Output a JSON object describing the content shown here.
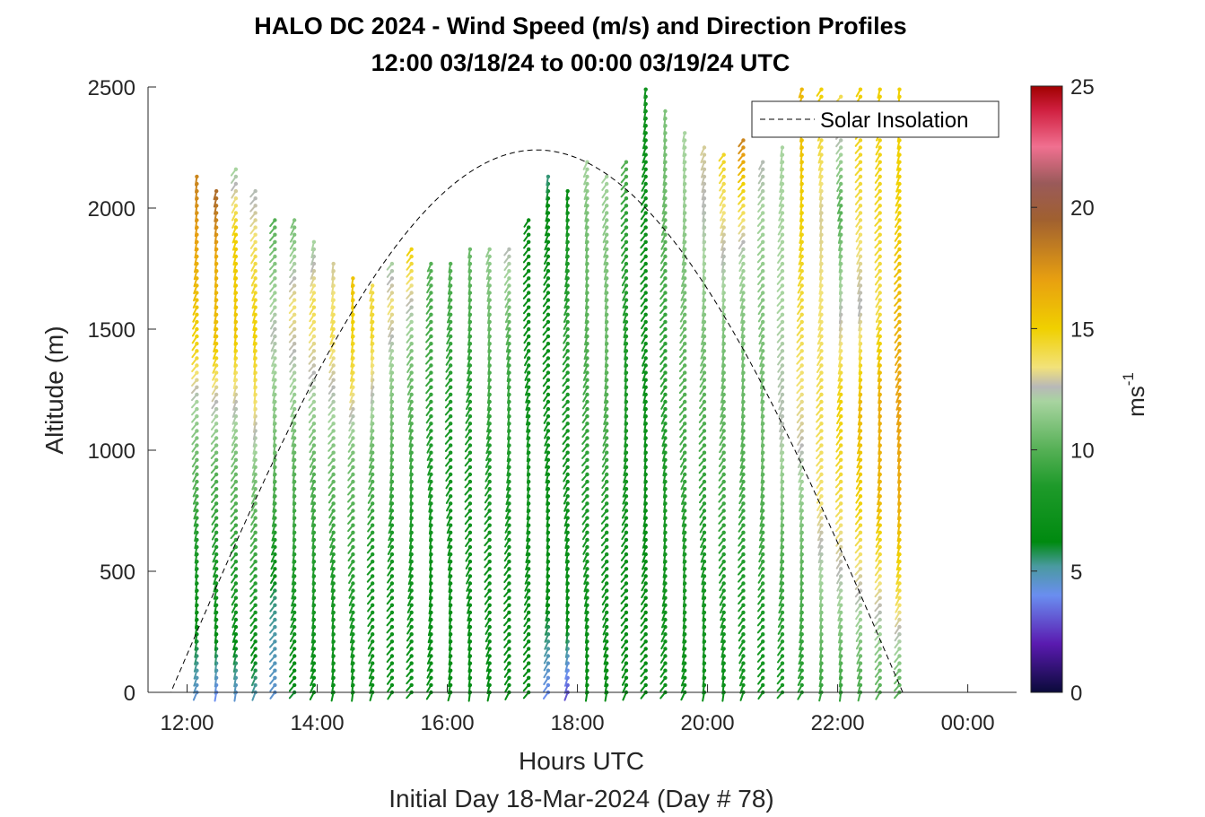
{
  "chart_data": {
    "type": "scatter",
    "title": "HALO DC 2024 - Wind Speed (m/s) and Direction Profiles",
    "subtitle": "12:00 03/18/24 to 00:00 03/19/24  UTC",
    "xlabel": "Hours UTC",
    "xlabel2": "Initial Day 18-Mar-2024 (Day # 78)",
    "ylabel": "Altitude (m)",
    "x_ticks": [
      {
        "value": 12,
        "label": "12:00"
      },
      {
        "value": 14,
        "label": "14:00"
      },
      {
        "value": 16,
        "label": "16:00"
      },
      {
        "value": 18,
        "label": "18:00"
      },
      {
        "value": 20,
        "label": "20:00"
      },
      {
        "value": 22,
        "label": "22:00"
      },
      {
        "value": 24,
        "label": "00:00"
      }
    ],
    "y_ticks": [
      {
        "value": 0,
        "label": "0"
      },
      {
        "value": 500,
        "label": "500"
      },
      {
        "value": 1000,
        "label": "1000"
      },
      {
        "value": 1500,
        "label": "1500"
      },
      {
        "value": 2000,
        "label": "2000"
      },
      {
        "value": 2500,
        "label": "2500"
      }
    ],
    "xlim": [
      11.4,
      24.75
    ],
    "ylim": [
      0,
      2500
    ],
    "grid": false,
    "legend": {
      "placement": "top-right",
      "entries": [
        {
          "label": "Solar Insolation",
          "style": "dashed-black"
        }
      ]
    },
    "colorbar": {
      "label": "ms",
      "label_sup": "-1",
      "range": [
        0,
        25
      ],
      "ticks": [
        {
          "value": 0,
          "label": "0"
        },
        {
          "value": 5,
          "label": "5"
        },
        {
          "value": 10,
          "label": "10"
        },
        {
          "value": 15,
          "label": "15"
        },
        {
          "value": 20,
          "label": "20"
        },
        {
          "value": 25,
          "label": "25"
        }
      ],
      "stops": [
        {
          "v": 0,
          "c": "#0a0a3a"
        },
        {
          "v": 2,
          "c": "#5a1ab0"
        },
        {
          "v": 4,
          "c": "#6a8ef0"
        },
        {
          "v": 5.2,
          "c": "#4a9aa0"
        },
        {
          "v": 6.2,
          "c": "#008a10"
        },
        {
          "v": 8.5,
          "c": "#1e9a2a"
        },
        {
          "v": 10,
          "c": "#55b055"
        },
        {
          "v": 12,
          "c": "#a8d4a0"
        },
        {
          "v": 12.6,
          "c": "#b8b8b8"
        },
        {
          "v": 13.4,
          "c": "#f2e27a"
        },
        {
          "v": 15,
          "c": "#f0d000"
        },
        {
          "v": 17,
          "c": "#e8a010"
        },
        {
          "v": 19.5,
          "c": "#a06030"
        },
        {
          "v": 21,
          "c": "#9a5a5a"
        },
        {
          "v": 22.5,
          "c": "#f07090"
        },
        {
          "v": 24,
          "c": "#d02040"
        },
        {
          "v": 25,
          "c": "#a00000"
        }
      ]
    },
    "solar_insolation": {
      "sunrise_hour": 11.75,
      "sunset_hour": 23.0,
      "peak_hour": 17.4,
      "peak_altitude_equiv": 2240
    },
    "profiles": [
      {
        "t": 12.15,
        "top": 2130,
        "s": [
          [
            0,
            4.5
          ],
          [
            300,
            6.5
          ],
          [
            800,
            9.5
          ],
          [
            1200,
            12
          ],
          [
            1400,
            14.5
          ],
          [
            1700,
            16
          ],
          [
            2100,
            18
          ]
        ]
      },
      {
        "t": 12.45,
        "top": 2090,
        "s": [
          [
            0,
            4
          ],
          [
            300,
            7
          ],
          [
            900,
            10
          ],
          [
            1250,
            13
          ],
          [
            1450,
            15.5
          ],
          [
            1800,
            16.5
          ],
          [
            2050,
            19
          ]
        ]
      },
      {
        "t": 12.75,
        "top": 2180,
        "s": [
          [
            0,
            4.5
          ],
          [
            400,
            8
          ],
          [
            1000,
            11
          ],
          [
            1300,
            13.5
          ],
          [
            1500,
            15.5
          ],
          [
            1900,
            15
          ],
          [
            2150,
            12
          ]
        ]
      },
      {
        "t": 13.05,
        "top": 2090,
        "s": [
          [
            0,
            5
          ],
          [
            400,
            8.5
          ],
          [
            900,
            11
          ],
          [
            1200,
            13.5
          ],
          [
            1500,
            15
          ],
          [
            1800,
            14
          ],
          [
            2050,
            12.5
          ]
        ]
      },
      {
        "t": 13.35,
        "top": 1960,
        "s": [
          [
            0,
            4.5
          ],
          [
            400,
            5.5
          ],
          [
            700,
            9
          ],
          [
            1100,
            11
          ],
          [
            1500,
            12.5
          ],
          [
            1800,
            11
          ],
          [
            1950,
            10
          ]
        ]
      },
      {
        "t": 13.65,
        "top": 1950,
        "s": [
          [
            0,
            6
          ],
          [
            400,
            8
          ],
          [
            900,
            10
          ],
          [
            1300,
            12
          ],
          [
            1600,
            13.5
          ],
          [
            1900,
            11
          ]
        ]
      },
      {
        "t": 13.95,
        "top": 1870,
        "s": [
          [
            0,
            6.5
          ],
          [
            400,
            8
          ],
          [
            900,
            10
          ],
          [
            1300,
            12.5
          ],
          [
            1600,
            14
          ],
          [
            1850,
            12
          ]
        ]
      },
      {
        "t": 14.25,
        "top": 1780,
        "s": [
          [
            0,
            7
          ],
          [
            400,
            8
          ],
          [
            900,
            10.5
          ],
          [
            1250,
            12.5
          ],
          [
            1500,
            14
          ],
          [
            1750,
            13
          ]
        ]
      },
      {
        "t": 14.55,
        "top": 1720,
        "s": [
          [
            0,
            7
          ],
          [
            400,
            8.5
          ],
          [
            1000,
            11
          ],
          [
            1300,
            14
          ],
          [
            1550,
            15
          ],
          [
            1700,
            15.5
          ]
        ]
      },
      {
        "t": 14.85,
        "top": 1690,
        "s": [
          [
            0,
            7
          ],
          [
            500,
            8
          ],
          [
            1000,
            10.5
          ],
          [
            1300,
            13
          ],
          [
            1500,
            14.5
          ],
          [
            1680,
            14
          ]
        ]
      },
      {
        "t": 15.15,
        "top": 1790,
        "s": [
          [
            0,
            7
          ],
          [
            500,
            7.5
          ],
          [
            1000,
            10
          ],
          [
            1400,
            12
          ],
          [
            1600,
            13.5
          ],
          [
            1780,
            12
          ]
        ]
      },
      {
        "t": 15.45,
        "top": 1850,
        "s": [
          [
            0,
            7
          ],
          [
            500,
            7.5
          ],
          [
            1000,
            9.5
          ],
          [
            1400,
            11
          ],
          [
            1600,
            12.5
          ],
          [
            1840,
            15
          ]
        ]
      },
      {
        "t": 15.75,
        "top": 1790,
        "s": [
          [
            0,
            6.5
          ],
          [
            500,
            7
          ],
          [
            1000,
            8.5
          ],
          [
            1400,
            9.5
          ],
          [
            1780,
            10
          ]
        ]
      },
      {
        "t": 16.05,
        "top": 1790,
        "s": [
          [
            0,
            6.5
          ],
          [
            500,
            7
          ],
          [
            1000,
            8
          ],
          [
            1400,
            9
          ],
          [
            1780,
            10
          ]
        ]
      },
      {
        "t": 16.35,
        "top": 1830,
        "s": [
          [
            0,
            6.5
          ],
          [
            500,
            7
          ],
          [
            1000,
            8
          ],
          [
            1400,
            9
          ],
          [
            1820,
            10.5
          ]
        ]
      },
      {
        "t": 16.65,
        "top": 1830,
        "s": [
          [
            0,
            6.5
          ],
          [
            500,
            7
          ],
          [
            1000,
            8.5
          ],
          [
            1400,
            10
          ],
          [
            1820,
            11.5
          ]
        ]
      },
      {
        "t": 16.95,
        "top": 1830,
        "s": [
          [
            0,
            6.5
          ],
          [
            500,
            7
          ],
          [
            1000,
            8.5
          ],
          [
            1400,
            9.5
          ],
          [
            1820,
            12.5
          ]
        ]
      },
      {
        "t": 17.25,
        "top": 1960,
        "s": [
          [
            0,
            6.5
          ],
          [
            500,
            7
          ],
          [
            1000,
            7.5
          ],
          [
            1500,
            7
          ],
          [
            1950,
            6.5
          ]
        ]
      },
      {
        "t": 17.55,
        "top": 2140,
        "s": [
          [
            0,
            4
          ],
          [
            400,
            6.5
          ],
          [
            1000,
            7
          ],
          [
            1500,
            7
          ],
          [
            2000,
            6.5
          ],
          [
            2130,
            5.5
          ]
        ]
      },
      {
        "t": 17.85,
        "top": 2080,
        "s": [
          [
            0,
            3
          ],
          [
            300,
            6.5
          ],
          [
            1000,
            7.5
          ],
          [
            1500,
            9
          ],
          [
            1900,
            8
          ],
          [
            2070,
            6.5
          ]
        ]
      },
      {
        "t": 18.15,
        "top": 2200,
        "s": [
          [
            0,
            6.5
          ],
          [
            500,
            7.5
          ],
          [
            1000,
            9
          ],
          [
            1500,
            10
          ],
          [
            2000,
            11
          ],
          [
            2190,
            12
          ]
        ]
      },
      {
        "t": 18.45,
        "top": 2140,
        "s": [
          [
            0,
            6.5
          ],
          [
            500,
            7.5
          ],
          [
            1000,
            9.5
          ],
          [
            1500,
            10.5
          ],
          [
            2000,
            11.5
          ],
          [
            2130,
            12
          ]
        ]
      },
      {
        "t": 18.75,
        "top": 2190,
        "s": [
          [
            0,
            6.5
          ],
          [
            500,
            7
          ],
          [
            1000,
            8
          ],
          [
            1500,
            8.5
          ],
          [
            2000,
            9
          ],
          [
            2180,
            10
          ]
        ]
      },
      {
        "t": 19.05,
        "top": 2500,
        "s": [
          [
            0,
            6.5
          ],
          [
            500,
            6.5
          ],
          [
            1000,
            7
          ],
          [
            1500,
            7
          ],
          [
            2000,
            7
          ],
          [
            2300,
            7
          ],
          [
            2490,
            7.5
          ]
        ]
      },
      {
        "t": 19.35,
        "top": 2400,
        "s": [
          [
            0,
            7
          ],
          [
            500,
            7.5
          ],
          [
            1000,
            8.5
          ],
          [
            1500,
            9
          ],
          [
            2000,
            10.5
          ],
          [
            2390,
            11
          ]
        ]
      },
      {
        "t": 19.65,
        "top": 2320,
        "s": [
          [
            0,
            7
          ],
          [
            500,
            8
          ],
          [
            1000,
            9.5
          ],
          [
            1500,
            10.5
          ],
          [
            2000,
            11.5
          ],
          [
            2300,
            12
          ]
        ]
      },
      {
        "t": 19.95,
        "top": 2250,
        "s": [
          [
            0,
            7
          ],
          [
            500,
            8
          ],
          [
            1000,
            9.5
          ],
          [
            1500,
            11
          ],
          [
            2000,
            12.5
          ],
          [
            2240,
            13
          ]
        ]
      },
      {
        "t": 20.25,
        "top": 2220,
        "s": [
          [
            0,
            7
          ],
          [
            500,
            8.5
          ],
          [
            1000,
            10
          ],
          [
            1500,
            11
          ],
          [
            1800,
            12.5
          ],
          [
            2200,
            14.5
          ]
        ]
      },
      {
        "t": 20.55,
        "top": 2290,
        "s": [
          [
            0,
            7.5
          ],
          [
            500,
            8.5
          ],
          [
            1000,
            10
          ],
          [
            1500,
            11
          ],
          [
            1800,
            12
          ],
          [
            2100,
            15
          ],
          [
            2280,
            18
          ]
        ]
      },
      {
        "t": 20.85,
        "top": 2190,
        "s": [
          [
            0,
            7.5
          ],
          [
            500,
            9
          ],
          [
            1000,
            10.5
          ],
          [
            1500,
            11
          ],
          [
            2000,
            12
          ],
          [
            2180,
            12.5
          ]
        ]
      },
      {
        "t": 21.15,
        "top": 2260,
        "s": [
          [
            0,
            8
          ],
          [
            500,
            9.5
          ],
          [
            900,
            11.5
          ],
          [
            1100,
            12.5
          ],
          [
            1600,
            12
          ],
          [
            2000,
            12
          ],
          [
            2250,
            12
          ]
        ]
      },
      {
        "t": 21.45,
        "top": 2490,
        "s": [
          [
            0,
            8.5
          ],
          [
            500,
            10
          ],
          [
            800,
            11.5
          ],
          [
            1100,
            13
          ],
          [
            1500,
            14
          ],
          [
            2000,
            15
          ],
          [
            2480,
            16
          ]
        ]
      },
      {
        "t": 21.75,
        "top": 2490,
        "s": [
          [
            0,
            9
          ],
          [
            400,
            11.5
          ],
          [
            800,
            13.5
          ],
          [
            1200,
            14
          ],
          [
            1600,
            13.5
          ],
          [
            2000,
            13
          ],
          [
            2480,
            15
          ]
        ]
      },
      {
        "t": 22.05,
        "top": 2480,
        "s": [
          [
            0,
            9
          ],
          [
            400,
            12
          ],
          [
            800,
            14
          ],
          [
            1200,
            15
          ],
          [
            1500,
            13
          ],
          [
            2000,
            10
          ],
          [
            2470,
            14
          ]
        ]
      },
      {
        "t": 22.35,
        "top": 2490,
        "s": [
          [
            0,
            9.5
          ],
          [
            400,
            12.5
          ],
          [
            800,
            15
          ],
          [
            1200,
            16
          ],
          [
            1600,
            12.5
          ],
          [
            2000,
            14
          ],
          [
            2480,
            15
          ]
        ]
      },
      {
        "t": 22.65,
        "top": 2490,
        "s": [
          [
            0,
            10
          ],
          [
            400,
            13
          ],
          [
            800,
            16
          ],
          [
            1200,
            16.5
          ],
          [
            1600,
            14
          ],
          [
            2000,
            14.5
          ],
          [
            2480,
            15
          ]
        ]
      },
      {
        "t": 22.95,
        "top": 2490,
        "s": [
          [
            0,
            10
          ],
          [
            400,
            14
          ],
          [
            800,
            16.5
          ],
          [
            1200,
            17
          ],
          [
            1600,
            16
          ],
          [
            2000,
            15
          ],
          [
            2480,
            15
          ]
        ]
      }
    ]
  }
}
